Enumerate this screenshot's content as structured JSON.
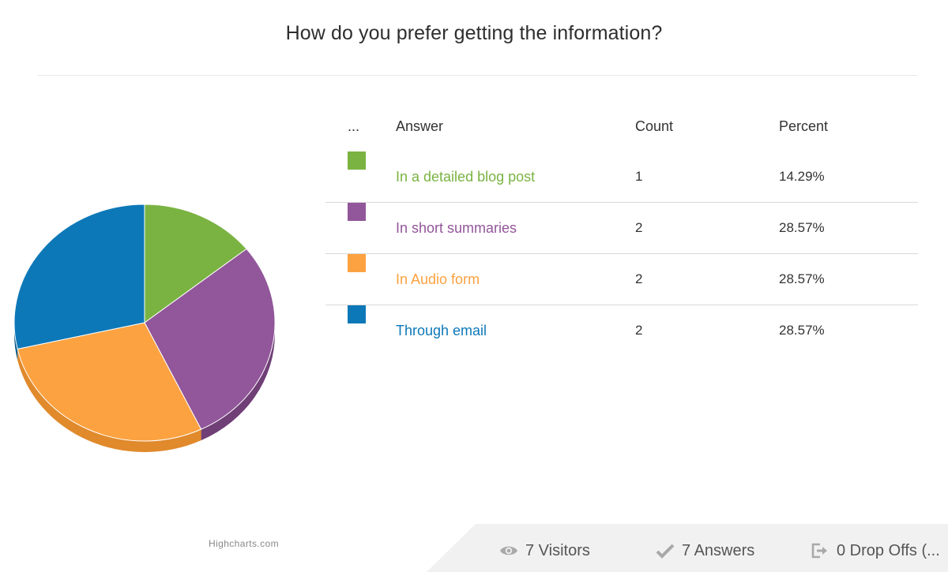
{
  "title": "How do you prefer getting the information?",
  "credit": "Highcharts.com",
  "table": {
    "headers": [
      "...",
      "Answer",
      "Count",
      "Percent"
    ]
  },
  "chart_data": {
    "type": "pie",
    "title": "How do you prefer getting the information?",
    "style": "3d",
    "slices": [
      {
        "label": "In a detailed blog post",
        "value": 1,
        "percent": "14.29%",
        "color": "#7ab342",
        "side_color": "#5f8d32"
      },
      {
        "label": "In short summaries",
        "value": 2,
        "percent": "28.57%",
        "color": "#92569a",
        "side_color": "#6f3f76"
      },
      {
        "label": "In Audio form",
        "value": 2,
        "percent": "28.57%",
        "color": "#fda240",
        "side_color": "#e08a2c"
      },
      {
        "label": "Through email",
        "value": 2,
        "percent": "28.57%",
        "color": "#0d78b8",
        "side_color": "#085a8c"
      }
    ]
  },
  "stats": {
    "visitors": {
      "icon": "eye-icon",
      "text": "7 Visitors"
    },
    "answers": {
      "icon": "check-icon",
      "text": "7 Answers"
    },
    "dropoffs": {
      "icon": "exit-icon",
      "text": "0 Drop Offs (..."
    }
  }
}
